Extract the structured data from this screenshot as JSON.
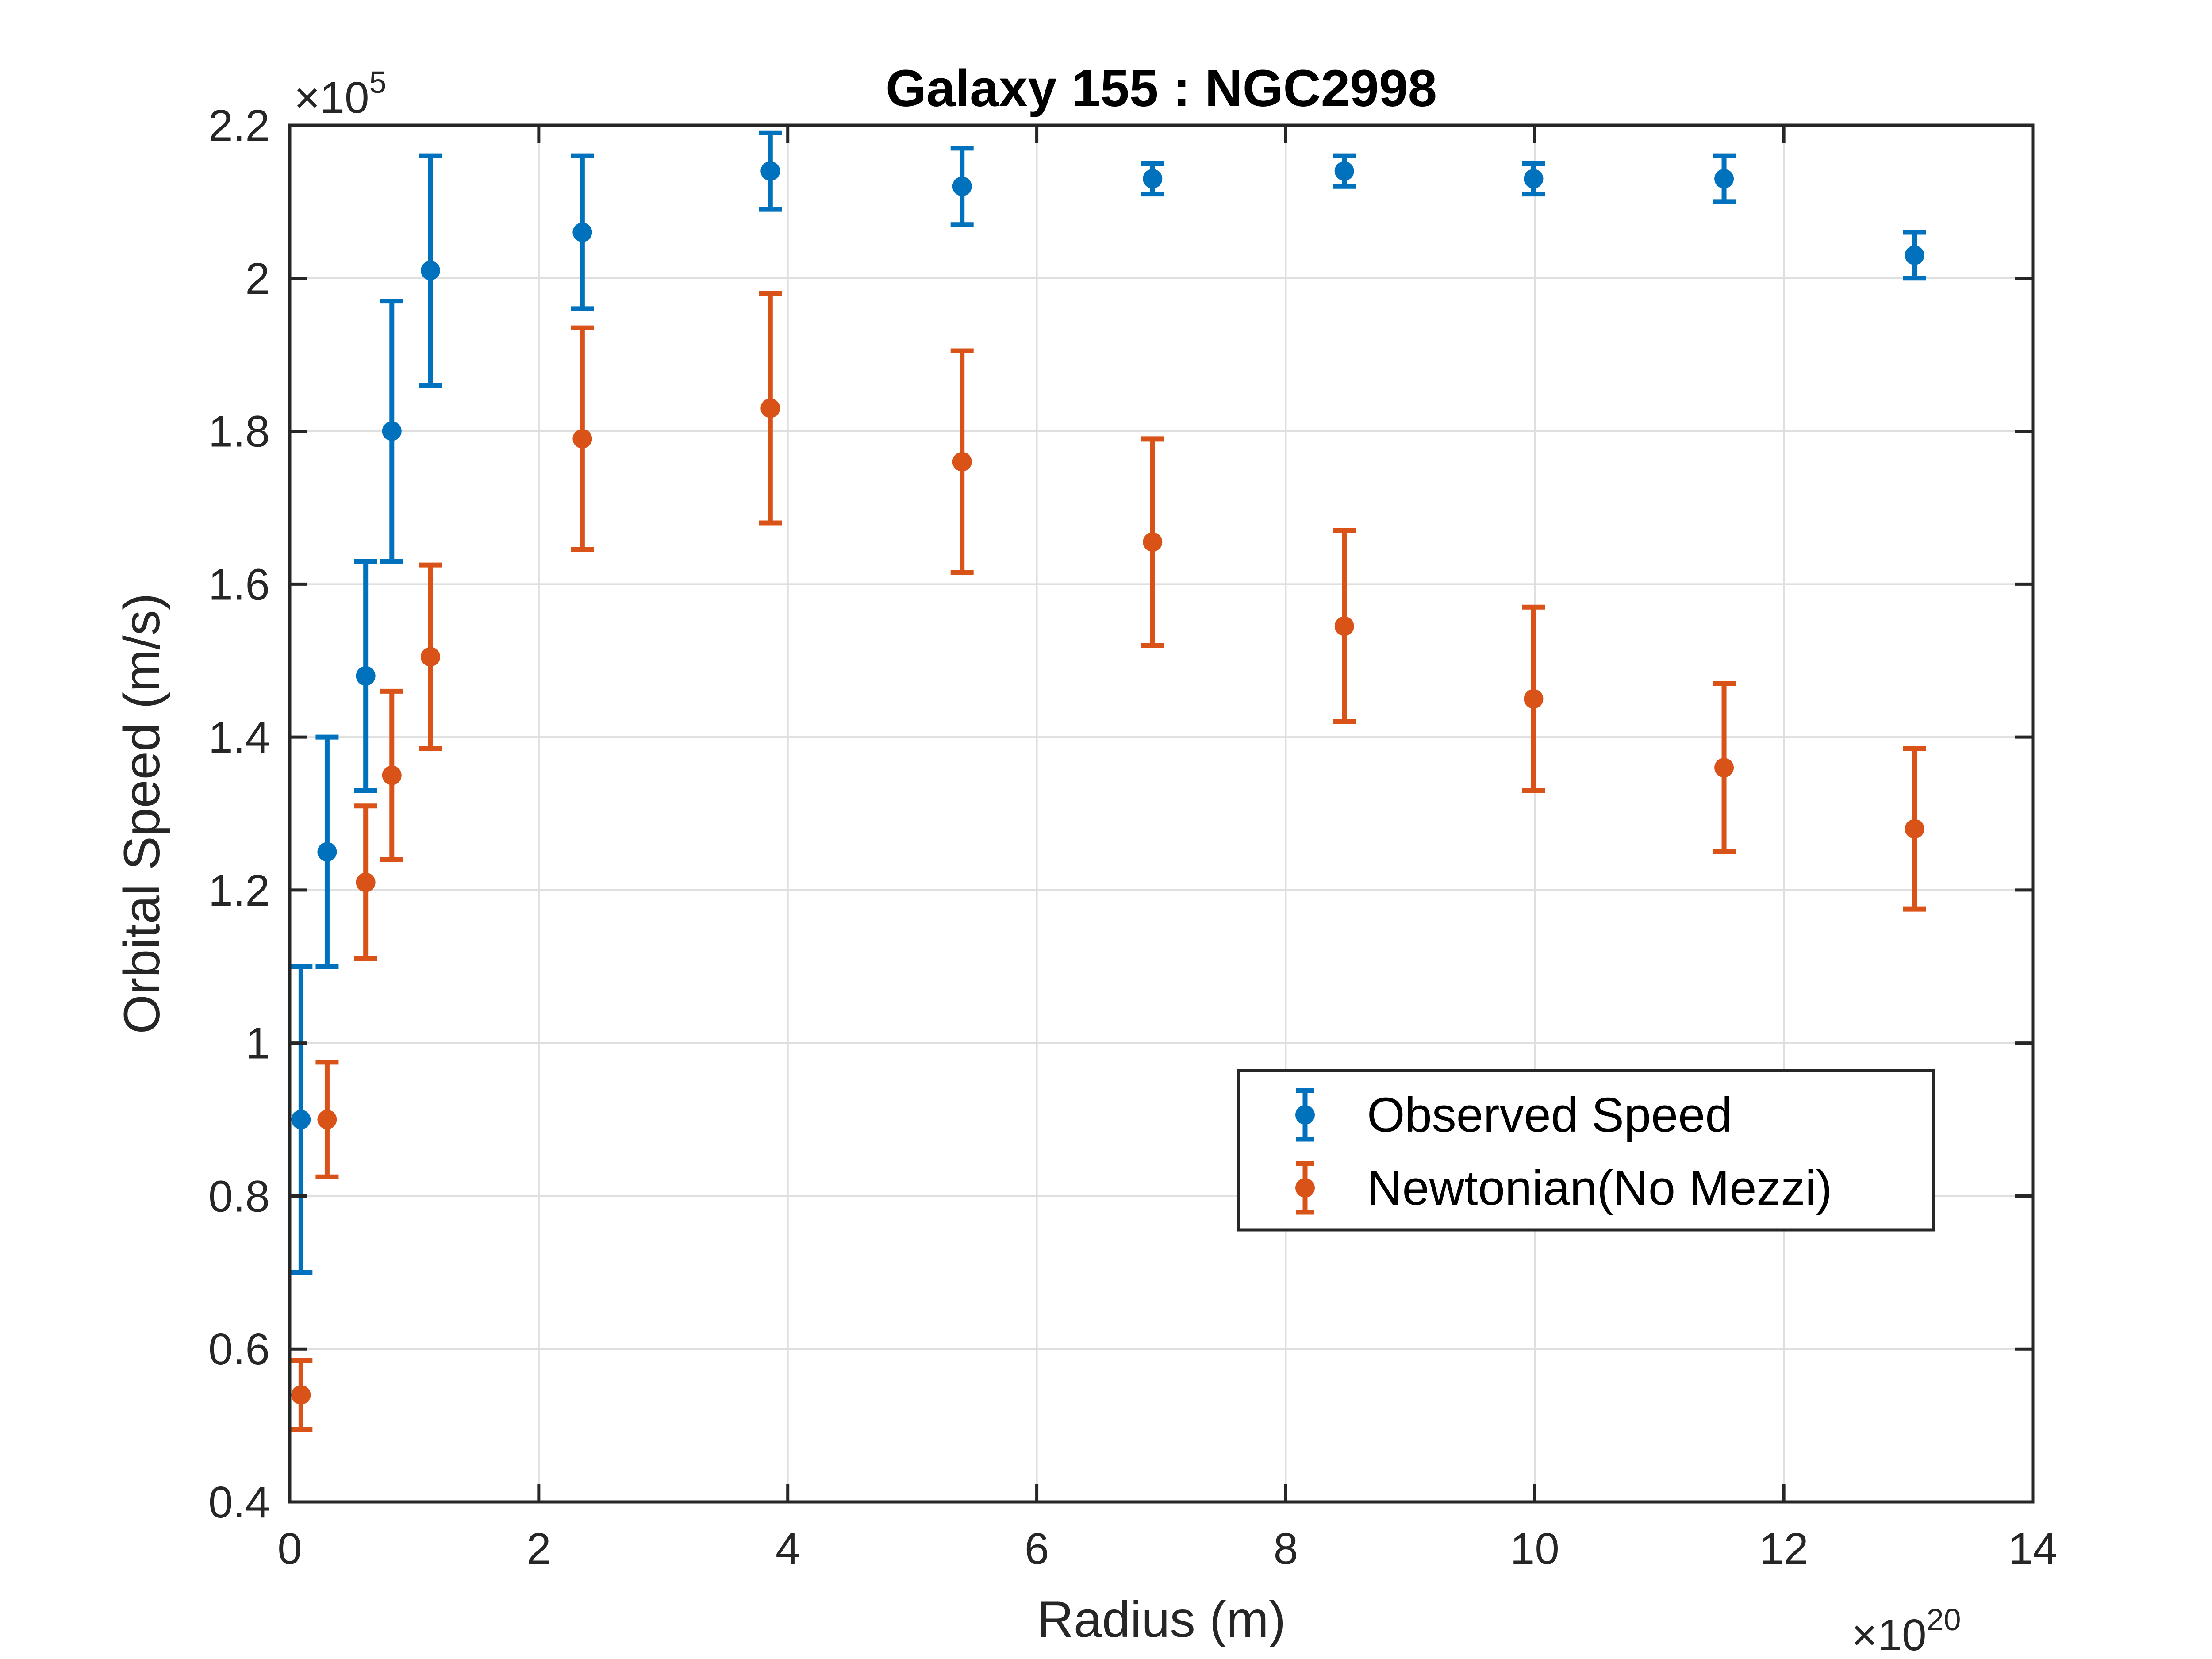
{
  "chart_data": {
    "type": "scatter",
    "title": "Galaxy 155 : NGC2998",
    "xlabel": "Radius (m)",
    "ylabel": "Orbital Speed (m/s)",
    "x_multiplier": {
      "base": "×10",
      "power": "20"
    },
    "y_multiplier": {
      "base": "×10",
      "power": "5"
    },
    "xlim": [
      0,
      14
    ],
    "ylim": [
      0.4,
      2.2
    ],
    "x_ticks": [
      "0",
      "2",
      "4",
      "6",
      "8",
      "10",
      "12",
      "14"
    ],
    "y_ticks": [
      "0.4",
      "0.6",
      "0.8",
      "1",
      "1.2",
      "1.4",
      "1.6",
      "1.8",
      "2",
      "2.2"
    ],
    "grid": true,
    "legend_position": "right",
    "series": [
      {
        "name": "Observed Speed",
        "color": "#0072BD",
        "points": [
          {
            "x": 0.09,
            "y": 0.9,
            "err": 0.2
          },
          {
            "x": 0.3,
            "y": 1.25,
            "err": 0.15
          },
          {
            "x": 0.61,
            "y": 1.48,
            "err": 0.15
          },
          {
            "x": 0.82,
            "y": 1.8,
            "err": 0.17
          },
          {
            "x": 1.13,
            "y": 2.01,
            "err": 0.15
          },
          {
            "x": 2.35,
            "y": 2.06,
            "err": 0.1
          },
          {
            "x": 3.86,
            "y": 2.14,
            "err": 0.05
          },
          {
            "x": 5.4,
            "y": 2.12,
            "err": 0.05
          },
          {
            "x": 6.93,
            "y": 2.13,
            "err": 0.02
          },
          {
            "x": 8.47,
            "y": 2.14,
            "err": 0.02
          },
          {
            "x": 9.99,
            "y": 2.13,
            "err": 0.02
          },
          {
            "x": 11.52,
            "y": 2.13,
            "err": 0.03
          },
          {
            "x": 13.05,
            "y": 2.03,
            "err": 0.03
          }
        ]
      },
      {
        "name": "Newtonian(No Mezzi)",
        "color": "#D95319",
        "points": [
          {
            "x": 0.09,
            "y": 0.54,
            "err": 0.045
          },
          {
            "x": 0.3,
            "y": 0.9,
            "err": 0.075
          },
          {
            "x": 0.61,
            "y": 1.21,
            "err": 0.1
          },
          {
            "x": 0.82,
            "y": 1.35,
            "err": 0.11
          },
          {
            "x": 1.13,
            "y": 1.505,
            "err": 0.12
          },
          {
            "x": 2.35,
            "y": 1.79,
            "err": 0.145
          },
          {
            "x": 3.86,
            "y": 1.83,
            "err": 0.15
          },
          {
            "x": 5.4,
            "y": 1.76,
            "err": 0.145
          },
          {
            "x": 6.93,
            "y": 1.655,
            "err": 0.135
          },
          {
            "x": 8.47,
            "y": 1.545,
            "err": 0.125
          },
          {
            "x": 9.99,
            "y": 1.45,
            "err": 0.12
          },
          {
            "x": 11.52,
            "y": 1.36,
            "err": 0.11
          },
          {
            "x": 13.05,
            "y": 1.28,
            "err": 0.105
          }
        ]
      }
    ]
  }
}
